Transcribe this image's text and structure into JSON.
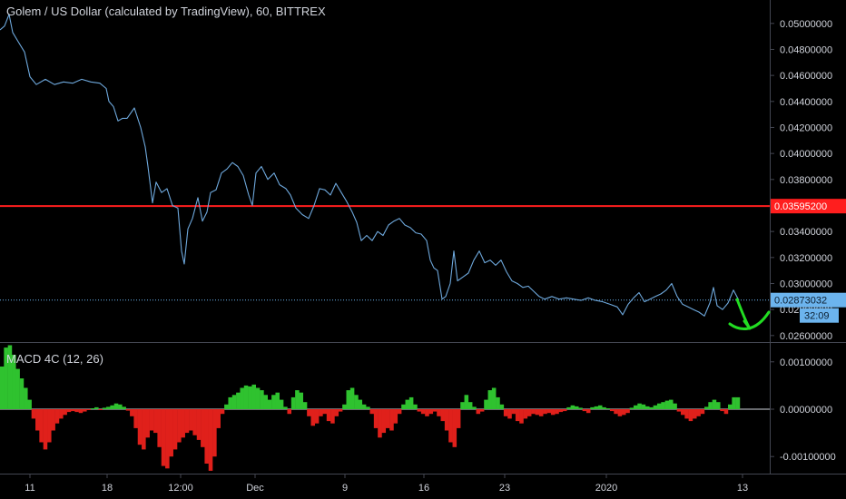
{
  "chart_data": [
    {
      "type": "line",
      "title": "Golem / US Dollar (calculated by TradingView), 60, BITTREX",
      "y_ticks": [
        "0.05000000",
        "0.04800000",
        "0.04600000",
        "0.04400000",
        "0.04200000",
        "0.04000000",
        "0.03800000",
        "0.03600000",
        "0.03400000",
        "0.03200000",
        "0.03000000",
        "0.02800000",
        "0.02600000"
      ],
      "ylim": [
        0.0255,
        0.0518
      ],
      "x_ticks": [
        "11",
        "18",
        "12:00",
        "Dec",
        "9",
        "16",
        "23",
        "2020",
        "13"
      ],
      "price_line": {
        "value": 0.035952,
        "label": "0.03595200",
        "color": "#ff1e1e"
      },
      "last_price": {
        "value": 0.02873032,
        "label": "0.02873032",
        "countdown": "32:09",
        "color": "#6cb4ee"
      },
      "series": [
        {
          "color": "#6ea8dc",
          "values": [
            {
              "x": 0,
              "y": 0.0495
            },
            {
              "x": 5,
              "y": 0.0498
            },
            {
              "x": 10,
              "y": 0.0507
            },
            {
              "x": 14,
              "y": 0.0493
            },
            {
              "x": 20,
              "y": 0.0486
            },
            {
              "x": 27,
              "y": 0.0478
            },
            {
              "x": 33,
              "y": 0.0459
            },
            {
              "x": 40,
              "y": 0.0453
            },
            {
              "x": 50,
              "y": 0.0457
            },
            {
              "x": 60,
              "y": 0.0453
            },
            {
              "x": 70,
              "y": 0.0455
            },
            {
              "x": 80,
              "y": 0.0454
            },
            {
              "x": 90,
              "y": 0.0457
            },
            {
              "x": 100,
              "y": 0.0455
            },
            {
              "x": 110,
              "y": 0.0454
            },
            {
              "x": 117,
              "y": 0.045
            },
            {
              "x": 120,
              "y": 0.044
            },
            {
              "x": 125,
              "y": 0.0436
            },
            {
              "x": 130,
              "y": 0.0425
            },
            {
              "x": 135,
              "y": 0.0427
            },
            {
              "x": 140,
              "y": 0.0427
            },
            {
              "x": 148,
              "y": 0.0435
            },
            {
              "x": 155,
              "y": 0.042
            },
            {
              "x": 160,
              "y": 0.0405
            },
            {
              "x": 163,
              "y": 0.039
            },
            {
              "x": 168,
              "y": 0.0362
            },
            {
              "x": 172,
              "y": 0.0378
            },
            {
              "x": 178,
              "y": 0.037
            },
            {
              "x": 184,
              "y": 0.0373
            },
            {
              "x": 190,
              "y": 0.036
            },
            {
              "x": 196,
              "y": 0.0358
            },
            {
              "x": 200,
              "y": 0.0325
            },
            {
              "x": 203,
              "y": 0.0315
            },
            {
              "x": 207,
              "y": 0.0342
            },
            {
              "x": 212,
              "y": 0.035
            },
            {
              "x": 218,
              "y": 0.0366
            },
            {
              "x": 223,
              "y": 0.0348
            },
            {
              "x": 228,
              "y": 0.0355
            },
            {
              "x": 232,
              "y": 0.037
            },
            {
              "x": 238,
              "y": 0.0372
            },
            {
              "x": 244,
              "y": 0.0385
            },
            {
              "x": 250,
              "y": 0.0388
            },
            {
              "x": 256,
              "y": 0.0393
            },
            {
              "x": 262,
              "y": 0.039
            },
            {
              "x": 268,
              "y": 0.0383
            },
            {
              "x": 274,
              "y": 0.0368
            },
            {
              "x": 278,
              "y": 0.036
            },
            {
              "x": 282,
              "y": 0.0385
            },
            {
              "x": 288,
              "y": 0.039
            },
            {
              "x": 295,
              "y": 0.038
            },
            {
              "x": 302,
              "y": 0.0385
            },
            {
              "x": 308,
              "y": 0.0376
            },
            {
              "x": 315,
              "y": 0.0373
            },
            {
              "x": 320,
              "y": 0.0368
            },
            {
              "x": 326,
              "y": 0.0358
            },
            {
              "x": 333,
              "y": 0.0353
            },
            {
              "x": 340,
              "y": 0.035
            },
            {
              "x": 346,
              "y": 0.036
            },
            {
              "x": 352,
              "y": 0.0373
            },
            {
              "x": 358,
              "y": 0.0372
            },
            {
              "x": 364,
              "y": 0.0368
            },
            {
              "x": 370,
              "y": 0.0377
            },
            {
              "x": 376,
              "y": 0.037
            },
            {
              "x": 382,
              "y": 0.0363
            },
            {
              "x": 388,
              "y": 0.0355
            },
            {
              "x": 393,
              "y": 0.0347
            },
            {
              "x": 398,
              "y": 0.0333
            },
            {
              "x": 404,
              "y": 0.0337
            },
            {
              "x": 410,
              "y": 0.0333
            },
            {
              "x": 416,
              "y": 0.034
            },
            {
              "x": 422,
              "y": 0.0337
            },
            {
              "x": 428,
              "y": 0.0345
            },
            {
              "x": 434,
              "y": 0.0348
            },
            {
              "x": 440,
              "y": 0.035
            },
            {
              "x": 446,
              "y": 0.0345
            },
            {
              "x": 452,
              "y": 0.0343
            },
            {
              "x": 458,
              "y": 0.0339
            },
            {
              "x": 464,
              "y": 0.0338
            },
            {
              "x": 470,
              "y": 0.0333
            },
            {
              "x": 474,
              "y": 0.0318
            },
            {
              "x": 478,
              "y": 0.0312
            },
            {
              "x": 482,
              "y": 0.031
            },
            {
              "x": 487,
              "y": 0.0288
            },
            {
              "x": 491,
              "y": 0.029
            },
            {
              "x": 496,
              "y": 0.03
            },
            {
              "x": 500,
              "y": 0.0325
            },
            {
              "x": 504,
              "y": 0.0302
            },
            {
              "x": 510,
              "y": 0.0305
            },
            {
              "x": 516,
              "y": 0.0308
            },
            {
              "x": 522,
              "y": 0.0318
            },
            {
              "x": 528,
              "y": 0.0325
            },
            {
              "x": 534,
              "y": 0.0316
            },
            {
              "x": 540,
              "y": 0.0318
            },
            {
              "x": 546,
              "y": 0.0314
            },
            {
              "x": 552,
              "y": 0.0318
            },
            {
              "x": 558,
              "y": 0.0309
            },
            {
              "x": 564,
              "y": 0.0302
            },
            {
              "x": 570,
              "y": 0.03
            },
            {
              "x": 576,
              "y": 0.0297
            },
            {
              "x": 582,
              "y": 0.0298
            },
            {
              "x": 588,
              "y": 0.0294
            },
            {
              "x": 594,
              "y": 0.029
            },
            {
              "x": 600,
              "y": 0.0288
            },
            {
              "x": 608,
              "y": 0.029
            },
            {
              "x": 616,
              "y": 0.0288
            },
            {
              "x": 624,
              "y": 0.0289
            },
            {
              "x": 632,
              "y": 0.0288
            },
            {
              "x": 640,
              "y": 0.0287
            },
            {
              "x": 648,
              "y": 0.0289
            },
            {
              "x": 656,
              "y": 0.0287
            },
            {
              "x": 664,
              "y": 0.0286
            },
            {
              "x": 672,
              "y": 0.0284
            },
            {
              "x": 680,
              "y": 0.0282
            },
            {
              "x": 686,
              "y": 0.0276
            },
            {
              "x": 692,
              "y": 0.0284
            },
            {
              "x": 698,
              "y": 0.0289
            },
            {
              "x": 704,
              "y": 0.0293
            },
            {
              "x": 710,
              "y": 0.0286
            },
            {
              "x": 716,
              "y": 0.0288
            },
            {
              "x": 722,
              "y": 0.029
            },
            {
              "x": 728,
              "y": 0.0292
            },
            {
              "x": 734,
              "y": 0.0295
            },
            {
              "x": 740,
              "y": 0.03
            },
            {
              "x": 746,
              "y": 0.029
            },
            {
              "x": 752,
              "y": 0.0284
            },
            {
              "x": 758,
              "y": 0.0282
            },
            {
              "x": 764,
              "y": 0.028
            },
            {
              "x": 770,
              "y": 0.0278
            },
            {
              "x": 776,
              "y": 0.0275
            },
            {
              "x": 782,
              "y": 0.0285
            },
            {
              "x": 786,
              "y": 0.0297
            },
            {
              "x": 790,
              "y": 0.0283
            },
            {
              "x": 796,
              "y": 0.028
            },
            {
              "x": 802,
              "y": 0.0285
            },
            {
              "x": 808,
              "y": 0.0295
            },
            {
              "x": 814,
              "y": 0.0287
            }
          ]
        }
      ]
    },
    {
      "type": "bar",
      "title": "MACD 4C (12, 26)",
      "y_ticks": [
        "0.00100000",
        "0.00000000",
        "-0.00100000"
      ],
      "ylim": [
        -0.00136,
        0.00136
      ],
      "colors": {
        "positive": "#2fc22f",
        "negative": "#e0201b"
      },
      "values": [
        0.0009,
        0.0013,
        0.00135,
        0.00115,
        0.00085,
        0.00065,
        0.00045,
        0.0002,
        -0.0002,
        -0.00045,
        -0.0007,
        -0.00085,
        -0.0007,
        -0.00045,
        -0.0003,
        -0.0002,
        -0.00012,
        -6e-05,
        -4e-05,
        -6e-05,
        -8e-05,
        -5e-05,
        -2e-05,
        2e-05,
        4e-05,
        -2e-05,
        3e-05,
        5e-05,
        8e-05,
        0.00012,
        0.0001,
        5e-05,
        -3e-05,
        -0.00015,
        -0.0004,
        -0.00075,
        -0.00085,
        -0.0006,
        -0.00045,
        -0.0005,
        -0.0008,
        -0.0012,
        -0.00125,
        -0.001,
        -0.00085,
        -0.0007,
        -0.0006,
        -0.0005,
        -0.00045,
        -0.00055,
        -0.00065,
        -0.0008,
        -0.00115,
        -0.0013,
        -0.001,
        -0.0004,
        -0.0001,
        0.0001,
        0.00025,
        0.0003,
        0.00035,
        0.00045,
        0.0005,
        0.00048,
        0.00052,
        0.00045,
        0.0004,
        0.0003,
        0.0002,
        0.0003,
        0.00035,
        0.0002,
        5e-05,
        -0.0001,
        0.00025,
        0.0004,
        0.00035,
        0.00015,
        -0.00015,
        -0.00035,
        -0.0003,
        -0.00015,
        -0.0001,
        -0.00025,
        -0.0003,
        -0.00015,
        -5e-05,
        0.0001,
        0.0004,
        0.00045,
        0.0003,
        0.0002,
        0.0001,
        5e-05,
        -0.0001,
        -0.0004,
        -0.0006,
        -0.0005,
        -0.0004,
        -0.00045,
        -0.0003,
        -0.0001,
        0.0001,
        0.0002,
        0.00025,
        0.0001,
        -5e-05,
        -0.0001,
        -0.00015,
        -0.0001,
        -5e-05,
        -0.00015,
        -0.00025,
        -0.00045,
        -0.0007,
        -0.0008,
        -0.0004,
        0.00015,
        0.0003,
        0.00015,
        5e-05,
        -0.0001,
        -5e-05,
        0.0002,
        0.0004,
        0.00045,
        0.00025,
        0.0001,
        -0.00015,
        -0.0002,
        -0.0001,
        -0.00025,
        -0.0003,
        -0.0002,
        -0.00015,
        -0.0001,
        -0.00012,
        -0.00015,
        -0.0001,
        -8e-05,
        -0.00012,
        -0.0001,
        -6e-05,
        -4e-05,
        4e-05,
        8e-05,
        6e-05,
        3e-05,
        -4e-05,
        -8e-05,
        4e-05,
        6e-05,
        8e-05,
        4e-05,
        2e-05,
        -4e-05,
        -0.0001,
        -0.00015,
        -0.00012,
        -8e-05,
        3e-05,
        8e-05,
        0.00012,
        0.0001,
        6e-05,
        4e-05,
        8e-05,
        0.00012,
        0.00015,
        0.00018,
        0.0002,
        0.00012,
        -5e-05,
        -0.00012,
        -0.0002,
        -0.00025,
        -0.0002,
        -0.00015,
        -0.0001,
        5e-05,
        0.00015,
        0.0002,
        0.00015,
        -4e-05,
        -0.0001,
        0.0001,
        0.00025,
        0.00025
      ]
    }
  ]
}
